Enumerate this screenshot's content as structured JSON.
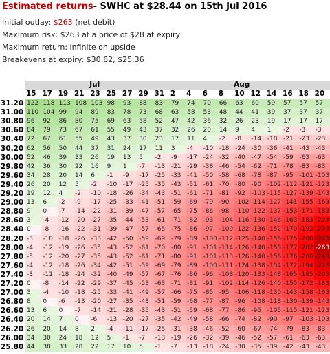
{
  "header": {
    "title": "Estimated returns",
    "subtitle": "- SWHC at $28.44 on 15th Jul 2016"
  },
  "summary": {
    "outlay_label": "Initial outlay:",
    "outlay_value": "$263",
    "outlay_note": "(net debit)",
    "lines": [
      "Maximum risk: $263 at a price of $28 at expiry",
      "Maximum return: infinite on upside",
      "Breakevens at expiry: $30.62, $25.36"
    ]
  },
  "table": {
    "months": [
      "Jul",
      "Aug"
    ],
    "days": [
      15,
      17,
      19,
      21,
      23,
      25,
      27,
      29,
      31,
      2,
      4,
      6,
      8,
      10,
      12,
      14,
      16,
      18,
      20
    ],
    "rows": [
      {
        "price": "31.20",
        "values": [
          122,
          118,
          113,
          108,
          103,
          98,
          93,
          88,
          83,
          79,
          74,
          70,
          66,
          63,
          60,
          59,
          57,
          57,
          57
        ]
      },
      {
        "price": "31.00",
        "values": [
          110,
          104,
          99,
          94,
          89,
          83,
          78,
          73,
          68,
          63,
          58,
          53,
          48,
          44,
          41,
          39,
          37,
          37,
          37
        ]
      },
      {
        "price": "30.80",
        "values": [
          96,
          92,
          86,
          80,
          75,
          69,
          63,
          58,
          52,
          47,
          42,
          36,
          32,
          26,
          23,
          19,
          17,
          17,
          17
        ]
      },
      {
        "price": "30.60",
        "values": [
          84,
          79,
          73,
          67,
          61,
          55,
          49,
          43,
          37,
          32,
          26,
          20,
          14,
          9,
          4,
          1,
          -2,
          -3,
          -3
        ]
      },
      {
        "price": "30.40",
        "values": [
          72,
          67,
          61,
          55,
          49,
          43,
          37,
          30,
          23,
          17,
          11,
          4,
          -2,
          -8,
          -14,
          -18,
          -21,
          -23,
          -23
        ]
      },
      {
        "price": "30.20",
        "values": [
          62,
          56,
          50,
          44,
          37,
          31,
          24,
          17,
          11,
          3,
          -4,
          -10,
          -18,
          -24,
          -30,
          -36,
          -41,
          -43,
          -43
        ]
      },
      {
        "price": "30.00",
        "values": [
          52,
          46,
          39,
          33,
          26,
          19,
          13,
          5,
          -2,
          -9,
          -17,
          -24,
          -32,
          -40,
          -47,
          -54,
          -59,
          -63,
          -63
        ]
      },
      {
        "price": "29.80",
        "values": [
          42,
          36,
          30,
          22,
          16,
          9,
          1,
          -7,
          -13,
          -21,
          -29,
          -38,
          -46,
          -54,
          -62,
          -71,
          -78,
          -83,
          -83
        ]
      },
      {
        "price": "29.60",
        "values": [
          34,
          28,
          20,
          14,
          6,
          -1,
          -9,
          -17,
          -25,
          -33,
          -41,
          -50,
          -58,
          -68,
          -78,
          -87,
          -95,
          -101,
          -103
        ]
      },
      {
        "price": "29.40",
        "values": [
          26,
          20,
          12,
          5,
          -2,
          -10,
          -17,
          -25,
          -35,
          -43,
          -51,
          -61,
          -70,
          -80,
          -90,
          -102,
          -112,
          -121,
          -123
        ]
      },
      {
        "price": "29.20",
        "values": [
          19,
          12,
          4,
          -2,
          -10,
          -18,
          -26,
          -34,
          -43,
          -51,
          -61,
          -71,
          -81,
          -92,
          -103,
          -115,
          -127,
          -139,
          -143
        ]
      },
      {
        "price": "29.00",
        "values": [
          13,
          6,
          -2,
          -9,
          -17,
          -25,
          -33,
          -41,
          -51,
          -59,
          -69,
          -79,
          -90,
          -102,
          -114,
          -127,
          -141,
          -155,
          -163
        ]
      },
      {
        "price": "28.80",
        "values": [
          9,
          0,
          -7,
          -14,
          -22,
          -31,
          -39,
          -47,
          -57,
          -65,
          -75,
          -86,
          -98,
          -110,
          -122,
          -137,
          -153,
          -171,
          -183
        ]
      },
      {
        "price": "28.60",
        "values": [
          3,
          -4,
          -12,
          -20,
          -27,
          -35,
          -44,
          -53,
          -61,
          -71,
          -82,
          -93,
          -104,
          -116,
          -130,
          -146,
          -163,
          -183,
          -203
        ]
      },
      {
        "price": "28.40",
        "values": [
          0,
          -8,
          -16,
          -22,
          -31,
          -39,
          -47,
          -57,
          -65,
          -75,
          -86,
          -97,
          -109,
          -122,
          -136,
          -152,
          -170,
          -193,
          -223
        ]
      },
      {
        "price": "28.20",
        "values": [
          -3,
          -10,
          -18,
          -26,
          -33,
          -42,
          -50,
          -59,
          -69,
          -79,
          -89,
          -100,
          -112,
          -125,
          -140,
          -156,
          -175,
          -200,
          -243
        ]
      },
      {
        "price": "28.00",
        "values": [
          -4,
          -12,
          -19,
          -26,
          -35,
          -43,
          -52,
          -61,
          -70,
          -80,
          -91,
          -101,
          -114,
          -126,
          -140,
          -158,
          -177,
          -202,
          -263
        ]
      },
      {
        "price": "27.80",
        "values": [
          -5,
          -12,
          -20,
          -27,
          -35,
          -43,
          -52,
          -61,
          -71,
          -80,
          -91,
          -101,
          -113,
          -126,
          -140,
          -156,
          -176,
          -200,
          -243
        ]
      },
      {
        "price": "27.60",
        "values": [
          -4,
          -12,
          -18,
          -26,
          -34,
          -42,
          -51,
          -59,
          -69,
          -79,
          -89,
          -100,
          -111,
          -124,
          -138,
          -154,
          -172,
          -194,
          -223
        ]
      },
      {
        "price": "27.40",
        "values": [
          -3,
          -11,
          -18,
          -24,
          -32,
          -40,
          -49,
          -57,
          -67,
          -76,
          -86,
          -96,
          -108,
          -120,
          -133,
          -148,
          -165,
          -185,
          -203
        ]
      },
      {
        "price": "27.20",
        "values": [
          0,
          -8,
          -14,
          -22,
          -29,
          -37,
          -45,
          -53,
          -63,
          -71,
          -81,
          -91,
          -102,
          -114,
          -126,
          -140,
          -155,
          -172,
          -183
        ]
      },
      {
        "price": "27.00",
        "values": [
          3,
          -4,
          -10,
          -18,
          -25,
          -33,
          -41,
          -49,
          -57,
          -66,
          -75,
          -85,
          -95,
          -106,
          -118,
          -130,
          -143,
          -158,
          -163
        ]
      },
      {
        "price": "26.80",
        "values": [
          8,
          0,
          -6,
          -13,
          -20,
          -27,
          -35,
          -43,
          -51,
          -59,
          -68,
          -77,
          -87,
          -96,
          -108,
          -118,
          -130,
          -139,
          -143
        ]
      },
      {
        "price": "26.60",
        "values": [
          13,
          6,
          0,
          -7,
          -14,
          -21,
          -28,
          -35,
          -43,
          -51,
          -59,
          -68,
          -77,
          -86,
          -95,
          -105,
          -115,
          -121,
          -123
        ]
      },
      {
        "price": "26.40",
        "values": [
          20,
          14,
          7,
          0,
          -6,
          -13,
          -20,
          -27,
          -35,
          -42,
          -49,
          -58,
          -66,
          -74,
          -82,
          -90,
          -97,
          -103,
          -103
        ]
      },
      {
        "price": "26.20",
        "values": [
          26,
          20,
          14,
          8,
          2,
          -4,
          -11,
          -17,
          -25,
          -31,
          -38,
          -46,
          -52,
          -60,
          -67,
          -74,
          -79,
          -83,
          -83
        ]
      },
      {
        "price": "26.00",
        "values": [
          34,
          30,
          24,
          18,
          12,
          5,
          -1,
          -7,
          -13,
          -19,
          -26,
          -32,
          -39,
          -46,
          -52,
          -57,
          -61,
          -63,
          -63
        ]
      },
      {
        "price": "25.80",
        "values": [
          44,
          38,
          33,
          28,
          22,
          17,
          10,
          5,
          -1,
          -7,
          -13,
          -18,
          -24,
          -30,
          -35,
          -39,
          -42,
          -43,
          -43
        ]
      }
    ]
  }
}
